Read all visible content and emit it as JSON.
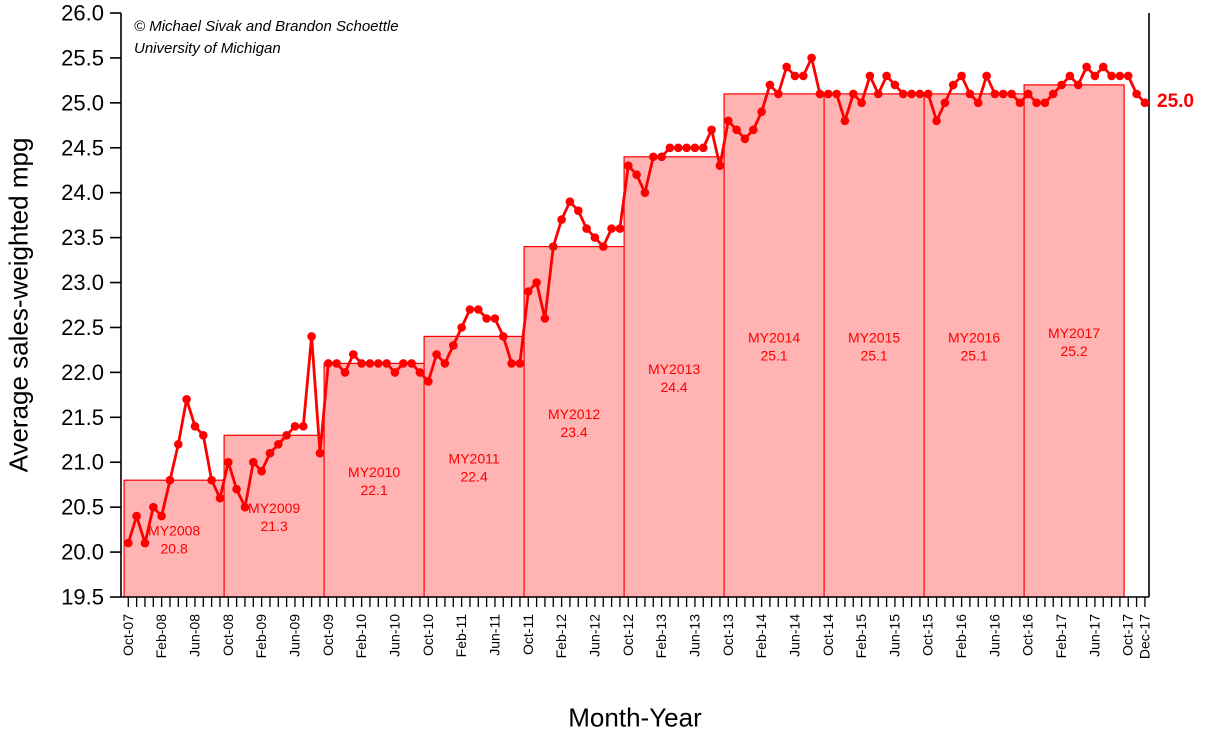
{
  "annotation": {
    "line1": "© Michael Sivak and Brandon Schoettle",
    "line2": "University of Michigan"
  },
  "end_label": "25.0",
  "colors": {
    "line": "#ff0000",
    "marker": "#ff0000",
    "bar_fill": "#ffb3b3",
    "bar_edge": "#ff0000",
    "bar_label": "#ff0000",
    "axis": "#000000",
    "end_label": "#ff0000"
  },
  "chart_data": {
    "type": "line",
    "title": "",
    "ylabel": "Average sales-weighted mpg",
    "xlabel": "Month-Year",
    "ylim": [
      19.5,
      26.0
    ],
    "ytick_step": 0.5,
    "ytick_labels": [
      "19.5",
      "20.0",
      "20.5",
      "21.0",
      "21.5",
      "22.0",
      "22.5",
      "23.0",
      "23.5",
      "24.0",
      "24.5",
      "25.0",
      "25.5",
      "26.0"
    ],
    "xtick_labels": [
      {
        "i": 0,
        "label": "Oct-07"
      },
      {
        "i": 4,
        "label": "Feb-08"
      },
      {
        "i": 8,
        "label": "Jun-08"
      },
      {
        "i": 12,
        "label": "Oct-08"
      },
      {
        "i": 16,
        "label": "Feb-09"
      },
      {
        "i": 20,
        "label": "Jun-09"
      },
      {
        "i": 24,
        "label": "Oct-09"
      },
      {
        "i": 28,
        "label": "Feb-10"
      },
      {
        "i": 32,
        "label": "Jun-10"
      },
      {
        "i": 36,
        "label": "Oct-10"
      },
      {
        "i": 40,
        "label": "Feb-11"
      },
      {
        "i": 44,
        "label": "Jun-11"
      },
      {
        "i": 48,
        "label": "Oct-11"
      },
      {
        "i": 52,
        "label": "Feb-12"
      },
      {
        "i": 56,
        "label": "Jun-12"
      },
      {
        "i": 60,
        "label": "Oct-12"
      },
      {
        "i": 64,
        "label": "Feb-13"
      },
      {
        "i": 68,
        "label": "Jun-13"
      },
      {
        "i": 72,
        "label": "Oct-13"
      },
      {
        "i": 76,
        "label": "Feb-14"
      },
      {
        "i": 80,
        "label": "Jun-14"
      },
      {
        "i": 84,
        "label": "Oct-14"
      },
      {
        "i": 88,
        "label": "Feb-15"
      },
      {
        "i": 92,
        "label": "Jun-15"
      },
      {
        "i": 96,
        "label": "Oct-15"
      },
      {
        "i": 100,
        "label": "Feb-16"
      },
      {
        "i": 104,
        "label": "Jun-16"
      },
      {
        "i": 108,
        "label": "Oct-16"
      },
      {
        "i": 112,
        "label": "Feb-17"
      },
      {
        "i": 116,
        "label": "Jun-17"
      },
      {
        "i": 120,
        "label": "Oct-17"
      },
      {
        "i": 122,
        "label": "Dec-17"
      }
    ],
    "bars": [
      {
        "my": "MY2008",
        "value": 20.8
      },
      {
        "my": "MY2009",
        "value": 21.3
      },
      {
        "my": "MY2010",
        "value": 22.1
      },
      {
        "my": "MY2011",
        "value": 22.4
      },
      {
        "my": "MY2012",
        "value": 23.4
      },
      {
        "my": "MY2013",
        "value": 24.4
      },
      {
        "my": "MY2014",
        "value": 25.1
      },
      {
        "my": "MY2015",
        "value": 25.1
      },
      {
        "my": "MY2016",
        "value": 25.1
      },
      {
        "my": "MY2017",
        "value": 25.2
      }
    ],
    "line": {
      "name": "monthly average sales-weighted mpg",
      "start_month": "Oct-07",
      "end_month": "Dec-17",
      "values": [
        20.1,
        20.4,
        20.1,
        20.5,
        20.4,
        20.8,
        21.2,
        21.7,
        21.4,
        21.3,
        20.8,
        20.6,
        21.0,
        20.7,
        20.5,
        21.0,
        20.9,
        21.1,
        21.2,
        21.3,
        21.4,
        21.4,
        22.4,
        21.1,
        22.1,
        22.1,
        22.0,
        22.2,
        22.1,
        22.1,
        22.1,
        22.1,
        22.0,
        22.1,
        22.1,
        22.0,
        21.9,
        22.2,
        22.1,
        22.3,
        22.5,
        22.7,
        22.7,
        22.6,
        22.6,
        22.4,
        22.1,
        22.1,
        22.9,
        23.0,
        22.6,
        23.4,
        23.7,
        23.9,
        23.8,
        23.6,
        23.5,
        23.4,
        23.6,
        23.6,
        24.3,
        24.2,
        24.0,
        24.4,
        24.4,
        24.5,
        24.5,
        24.5,
        24.5,
        24.5,
        24.7,
        24.3,
        24.8,
        24.7,
        24.6,
        24.7,
        24.9,
        25.2,
        25.1,
        25.4,
        25.3,
        25.3,
        25.5,
        25.1,
        25.1,
        25.1,
        24.8,
        25.1,
        25.0,
        25.3,
        25.1,
        25.3,
        25.2,
        25.1,
        25.1,
        25.1,
        25.1,
        24.8,
        25.0,
        25.2,
        25.3,
        25.1,
        25.0,
        25.3,
        25.1,
        25.1,
        25.1,
        25.0,
        25.1,
        25.0,
        25.0,
        25.1,
        25.2,
        25.3,
        25.2,
        25.4,
        25.3,
        25.4,
        25.3,
        25.3,
        25.3,
        25.1,
        25.0
      ]
    }
  }
}
